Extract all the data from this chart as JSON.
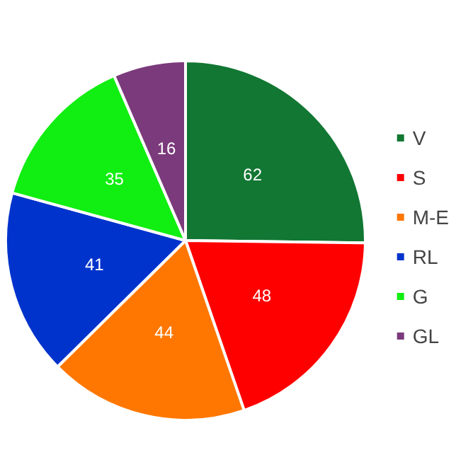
{
  "chart_data": {
    "type": "pie",
    "categories": [
      "V",
      "S",
      "M-E",
      "RL",
      "G",
      "GL"
    ],
    "values": [
      62,
      48,
      44,
      41,
      35,
      16
    ],
    "colors": [
      "#117733",
      "#ff0000",
      "#ff7700",
      "#0033cc",
      "#11ee11",
      "#7b3a7b"
    ],
    "data_labels": true,
    "legend": "right"
  }
}
